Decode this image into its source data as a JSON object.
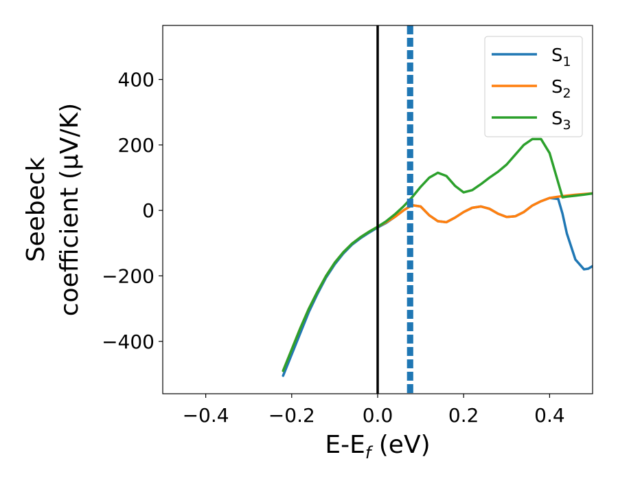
{
  "chart_data": {
    "type": "line",
    "xlabel": "E-E",
    "xlabel_sub": "f",
    "xlabel_unit": " (eV)",
    "ylabel_line1": "Seebeck",
    "ylabel_line2": "coefficient  (μV/K)",
    "xlim": [
      -0.5,
      0.5
    ],
    "ylim": [
      -560,
      565
    ],
    "xticks": [
      -0.4,
      -0.2,
      0.0,
      0.2,
      0.4
    ],
    "xtick_labels": [
      "−0.4",
      "−0.2",
      "0.0",
      "0.2",
      "0.4"
    ],
    "yticks": [
      -400,
      -200,
      0,
      200,
      400
    ],
    "ytick_labels": [
      "−400",
      "−200",
      "0",
      "200",
      "400"
    ],
    "grid": false,
    "legend_position": "top-right",
    "vlines": [
      {
        "x": 0.0,
        "color": "#000000",
        "style": "solid"
      },
      {
        "x": 0.071,
        "color": "#1f77b4",
        "style": "dashed"
      },
      {
        "x": 0.075,
        "color": "#1f77b4",
        "style": "dashed"
      },
      {
        "x": 0.08,
        "color": "#1f77b4",
        "style": "dashed"
      }
    ],
    "series": [
      {
        "name": "S",
        "subscript": "1",
        "color": "#1f77b4",
        "x": [
          -0.22,
          -0.2,
          -0.18,
          -0.16,
          -0.14,
          -0.12,
          -0.1,
          -0.08,
          -0.06,
          -0.04,
          -0.02,
          0.0,
          0.02,
          0.04,
          0.06,
          0.07,
          0.08,
          0.1,
          0.12,
          0.14,
          0.16,
          0.18,
          0.2,
          0.22,
          0.24,
          0.26,
          0.28,
          0.3,
          0.32,
          0.34,
          0.36,
          0.38,
          0.4,
          0.42,
          0.43,
          0.44,
          0.46,
          0.48,
          0.49,
          0.5
        ],
        "y": [
          -505,
          -440,
          -375,
          -310,
          -255,
          -205,
          -165,
          -132,
          -105,
          -85,
          -68,
          -52,
          -38,
          -20,
          0,
          8,
          16,
          12,
          -15,
          -33,
          -36,
          -22,
          -5,
          8,
          12,
          5,
          -10,
          -20,
          -18,
          -5,
          15,
          28,
          38,
          35,
          -10,
          -70,
          -150,
          -180,
          -178,
          -170
        ]
      },
      {
        "name": "S",
        "subscript": "2",
        "color": "#ff7f0e",
        "x": [
          -0.22,
          -0.2,
          -0.18,
          -0.16,
          -0.14,
          -0.12,
          -0.1,
          -0.08,
          -0.06,
          -0.04,
          -0.02,
          0.0,
          0.02,
          0.04,
          0.06,
          0.07,
          0.08,
          0.1,
          0.12,
          0.14,
          0.16,
          0.18,
          0.2,
          0.22,
          0.24,
          0.26,
          0.28,
          0.3,
          0.32,
          0.34,
          0.36,
          0.38,
          0.4,
          0.42,
          0.44,
          0.46,
          0.48,
          0.5
        ],
        "y": [
          -490,
          -425,
          -360,
          -300,
          -248,
          -200,
          -160,
          -128,
          -102,
          -82,
          -65,
          -50,
          -36,
          -20,
          0,
          8,
          16,
          12,
          -15,
          -33,
          -36,
          -22,
          -5,
          8,
          12,
          5,
          -10,
          -20,
          -18,
          -5,
          15,
          28,
          38,
          42,
          45,
          48,
          50,
          52
        ]
      },
      {
        "name": "S",
        "subscript": "3",
        "color": "#2ca02c",
        "x": [
          -0.22,
          -0.2,
          -0.18,
          -0.16,
          -0.14,
          -0.12,
          -0.1,
          -0.08,
          -0.06,
          -0.04,
          -0.02,
          0.0,
          0.02,
          0.04,
          0.06,
          0.08,
          0.1,
          0.12,
          0.14,
          0.16,
          0.18,
          0.2,
          0.22,
          0.24,
          0.26,
          0.28,
          0.3,
          0.32,
          0.34,
          0.36,
          0.38,
          0.4,
          0.42,
          0.43,
          0.44,
          0.46,
          0.48,
          0.5
        ],
        "y": [
          -490,
          -425,
          -360,
          -300,
          -248,
          -200,
          -160,
          -128,
          -102,
          -82,
          -65,
          -50,
          -33,
          -12,
          12,
          40,
          72,
          100,
          115,
          105,
          75,
          55,
          62,
          80,
          100,
          118,
          140,
          170,
          200,
          218,
          218,
          175,
          85,
          40,
          42,
          45,
          48,
          52
        ]
      }
    ]
  }
}
